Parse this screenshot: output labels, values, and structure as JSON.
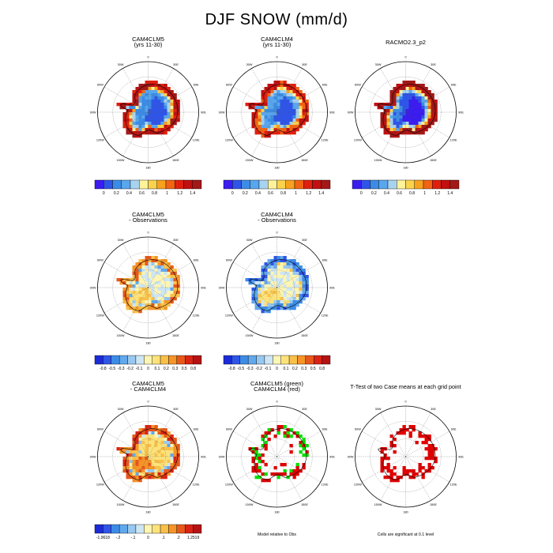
{
  "title": "DJF SNOW (mm/d)",
  "palettes": {
    "abs": [
      "#3a1cf0",
      "#2f55e8",
      "#3c8ce6",
      "#58a6ee",
      "#a7d3f0",
      "#fff29a",
      "#fbd24c",
      "#f7a11f",
      "#f06413",
      "#e0200f",
      "#c01010",
      "#a31818"
    ],
    "diff": [
      "#1c2bd8",
      "#2f55e8",
      "#3c8ce6",
      "#62a8ec",
      "#98c8ef",
      "#cde6f5",
      "#fdf5b4",
      "#fde27a",
      "#f9c04a",
      "#f59428",
      "#e8581a",
      "#d82414",
      "#b51313"
    ],
    "sig_red": "#e00000",
    "sig_green": "#00e000"
  },
  "chart_data": [
    {
      "type": "heatmap",
      "projection": "polar-stereographic",
      "title": "CAM4CLM5",
      "subtitle": "(yrs 11-30)",
      "field": "abs",
      "interior": 1,
      "coast": 10,
      "colorbar": {
        "ticks": [
          "0",
          "0.2",
          "0.4",
          "0.6",
          "0.8",
          "1",
          "1.2",
          "1.4"
        ],
        "show": true
      }
    },
    {
      "type": "heatmap",
      "projection": "polar-stereographic",
      "title": "CAM4CLM4",
      "subtitle": "(yrs 11-30)",
      "field": "abs",
      "interior": 1,
      "coast": 9,
      "colorbar": {
        "ticks": [
          "0",
          "0.2",
          "0.4",
          "0.6",
          "0.8",
          "1",
          "1.2",
          "1.4"
        ],
        "show": true
      }
    },
    {
      "type": "heatmap",
      "projection": "polar-stereographic",
      "title": "RACMO2.3_p2",
      "subtitle": "",
      "field": "abs",
      "interior": 0,
      "coast": 11,
      "colorbar": {
        "ticks": [
          "0",
          "0.2",
          "0.4",
          "0.6",
          "0.8",
          "1",
          "1.2",
          "1.4"
        ],
        "show": true
      }
    },
    {
      "type": "heatmap",
      "projection": "polar-stereographic",
      "title": "CAM4CLM5",
      "subtitle": "- Observations",
      "field": "diff",
      "interior": 5,
      "coast": 9,
      "colorbar": {
        "ticks": [
          "-0.8",
          "-0.5",
          "-0.3",
          "-0.2",
          "-0.1",
          "0",
          "0.1",
          "0.2",
          "0.3",
          "0.5",
          "0.8"
        ],
        "show": true
      }
    },
    {
      "type": "heatmap",
      "projection": "polar-stereographic",
      "title": "CAM4CLM4",
      "subtitle": "- Observations",
      "field": "diff",
      "interior": 5,
      "coast": 2,
      "colorbar": {
        "ticks": [
          "-0.8",
          "-0.5",
          "-0.3",
          "-0.2",
          "-0.1",
          "0",
          "0.1",
          "0.2",
          "0.3",
          "0.5",
          "0.8"
        ],
        "show": true
      }
    },
    {
      "type": "heatmap",
      "projection": "polar-stereographic",
      "title": "CAM4CLM5",
      "subtitle": "- CAM4CLM4",
      "field": "diff",
      "interior": 7,
      "coast": 10,
      "colorbar": {
        "ticks": [
          "-1.9618",
          "-.2",
          "-.1",
          "0",
          ".1",
          ".2",
          "1.2519"
        ],
        "show": true
      }
    },
    {
      "type": "heatmap",
      "projection": "polar-stereographic",
      "title": "CAM4CLM5 (green)",
      "subtitle": "CAM4CLM4 (red)",
      "field": "sig2",
      "footnote": "Model relative to Obs",
      "colorbar": {
        "ticks": [],
        "show": false
      }
    },
    {
      "type": "heatmap",
      "projection": "polar-stereographic",
      "title": "T-Test of two Case means at each grid point",
      "subtitle": "",
      "field": "sig1",
      "footnote": "Cells are significant at 0.1 level",
      "colorbar": {
        "ticks": [],
        "show": false
      }
    }
  ],
  "map_labels": {
    "lon": [
      "0",
      "30E",
      "60E",
      "90E",
      "120E",
      "150E",
      "180",
      "150W",
      "120W",
      "90W",
      "60W",
      "30W"
    ]
  }
}
